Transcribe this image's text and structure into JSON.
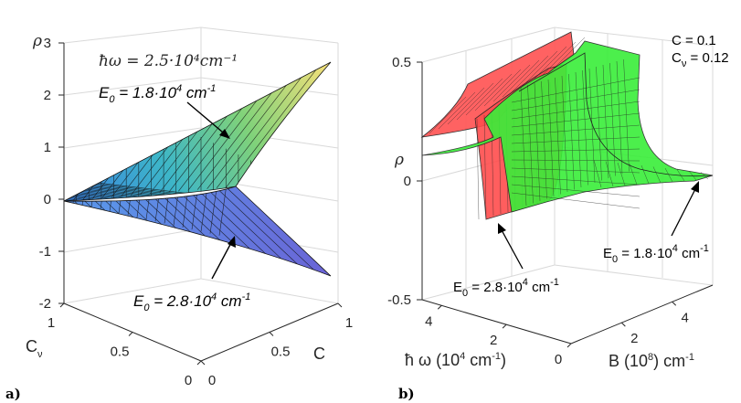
{
  "figure": {
    "panel_labels": [
      "a)",
      "b)"
    ]
  },
  "chart_data": [
    {
      "type": "surface3d",
      "panel": "a)",
      "zlabel": "ρ",
      "xlabel": "C",
      "ylabel": "Cν",
      "xlim": [
        0,
        1
      ],
      "ylim": [
        0,
        1
      ],
      "zlim": [
        -2,
        3
      ],
      "z_ticks": [
        "-2",
        "-1",
        "0",
        "1",
        "2",
        "3"
      ],
      "x_ticks": [
        "0",
        "0.5",
        "1"
      ],
      "y_ticks": [
        "1",
        "0.5",
        "0"
      ],
      "annotation_top": "ħω = 2.5·10⁴cm⁻¹",
      "series": [
        {
          "name": "E0 = 1.8·10^4 cm^-1",
          "label_parts": [
            "E",
            "0",
            " = 1.8·10",
            "4",
            " cm",
            "-1"
          ],
          "corner_values": {
            "C0_Cv0": 0.0,
            "C1_Cv0": 2.7,
            "C0_Cv1": 0.0,
            "C1_Cv1": 1.0
          },
          "colormap": "parula"
        },
        {
          "name": "E0 = 2.8·10^4 cm^-1",
          "label_parts": [
            "E",
            "0",
            " = 2.8·10",
            "4",
            " cm",
            "-1"
          ],
          "corner_values": {
            "C0_Cv0": 0.0,
            "C1_Cv0": -1.5,
            "C0_Cv1": 0.0,
            "C1_Cv1": -0.7
          },
          "colormap": "blue-violet"
        }
      ]
    },
    {
      "type": "surface3d",
      "panel": "b)",
      "zlabel": "ρ",
      "xlabel_parts": [
        "ħ ω (10",
        "4",
        " cm",
        "-1",
        ")"
      ],
      "ylabel_parts": [
        "B (10",
        "8",
        ")  cm",
        "-1"
      ],
      "zlim": [
        -0.5,
        0.5
      ],
      "z_ticks": [
        "0.5",
        "0",
        "-0.5"
      ],
      "x_ticks": [
        "4",
        "2",
        "0"
      ],
      "y_ticks": [
        "2",
        "4"
      ],
      "params": [
        {
          "text": "C = 0.1"
        },
        {
          "parts": [
            "C",
            "ν",
            " = 0.12"
          ]
        }
      ],
      "series": [
        {
          "name": "E0 = 2.8·10^4 cm^-1",
          "label_parts": [
            "E",
            "0",
            " = 2.8·10",
            "4",
            " cm",
            "-1"
          ],
          "color": "#ff3b3b",
          "resonance_hw": 2.8
        },
        {
          "name": "E0 = 1.8·10^4 cm^-1",
          "label_parts": [
            "E",
            "0",
            " = 1.8·10",
            "4",
            " cm",
            "-1"
          ],
          "color": "#33ff33",
          "resonance_hw": 1.8
        }
      ]
    }
  ]
}
